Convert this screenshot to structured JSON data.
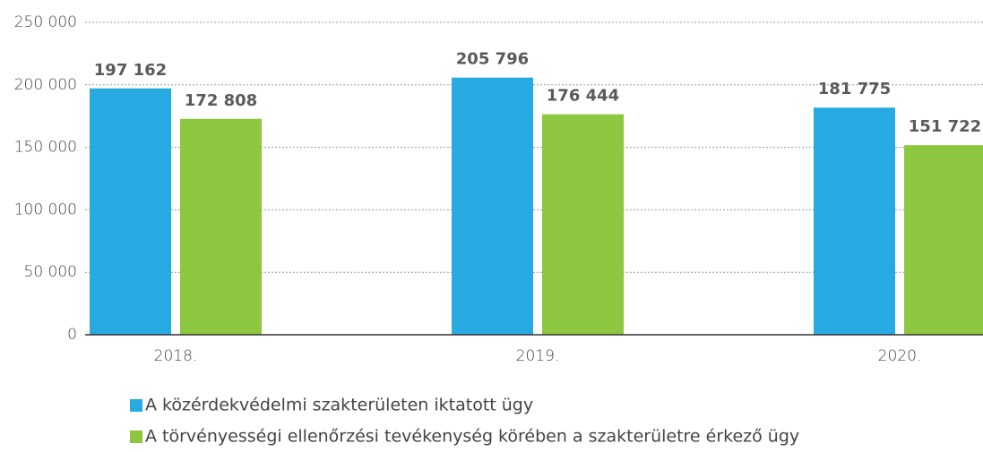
{
  "chart_data": {
    "type": "bar",
    "categories": [
      "2018.",
      "2019.",
      "2020."
    ],
    "series": [
      {
        "name": "A közérdekvédelmi szakterületen iktatott ügy",
        "color": "#27a9e1",
        "values": [
          197162,
          205796,
          181775
        ],
        "value_labels": [
          "197 162",
          "205 796",
          "181 775"
        ]
      },
      {
        "name": "A törvényességi ellenőrzési tevékenység körében a szakterületre érkező ügy",
        "color": "#8dc63f",
        "values": [
          172808,
          176444,
          151722
        ],
        "value_labels": [
          "172 808",
          "176 444",
          "151 722"
        ]
      }
    ],
    "ylim": [
      0,
      250000
    ],
    "yticks": [
      {
        "value": 0,
        "label": "0"
      },
      {
        "value": 50000,
        "label": "50 000"
      },
      {
        "value": 100000,
        "label": "100 000"
      },
      {
        "value": 150000,
        "label": "150 000"
      },
      {
        "value": 200000,
        "label": "200 000"
      },
      {
        "value": 250000,
        "label": "250 000"
      }
    ],
    "grid": true
  }
}
